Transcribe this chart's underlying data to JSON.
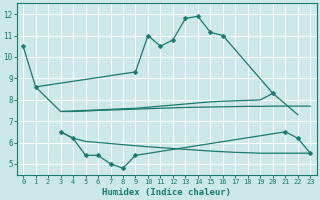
{
  "xlabel": "Humidex (Indice chaleur)",
  "bg_color": "#cce8e8",
  "line_color": "#1a7a6e",
  "grid_color": "#ffffff",
  "xlim": [
    -0.5,
    23.5
  ],
  "ylim": [
    4.5,
    12.5
  ],
  "yticks": [
    5,
    6,
    7,
    8,
    9,
    10,
    11,
    12
  ],
  "xticks": [
    0,
    1,
    2,
    3,
    4,
    5,
    6,
    7,
    8,
    9,
    10,
    11,
    12,
    13,
    14,
    15,
    16,
    17,
    18,
    19,
    20,
    21,
    22,
    23
  ],
  "line1_x": [
    0,
    1,
    9,
    10,
    11,
    12,
    13,
    14,
    15,
    16,
    20
  ],
  "line1_y": [
    10.5,
    8.6,
    9.3,
    11.0,
    10.5,
    10.8,
    11.8,
    11.9,
    11.15,
    11.0,
    8.3
  ],
  "line2_x": [
    1,
    3,
    9,
    10,
    11,
    12,
    13,
    14,
    15,
    16,
    17,
    18,
    19,
    20,
    22
  ],
  "line2_y": [
    8.6,
    7.45,
    7.6,
    7.65,
    7.7,
    7.75,
    7.8,
    7.85,
    7.9,
    7.93,
    7.95,
    7.97,
    7.99,
    8.3,
    7.3
  ],
  "line3_x": [
    3,
    4,
    5,
    6,
    7,
    8,
    9,
    10,
    11,
    12,
    13,
    14,
    15,
    16,
    17,
    18,
    19,
    20,
    21,
    22,
    23
  ],
  "line3_y": [
    7.45,
    7.45,
    7.47,
    7.5,
    7.52,
    7.54,
    7.56,
    7.58,
    7.6,
    7.62,
    7.64,
    7.65,
    7.66,
    7.67,
    7.68,
    7.69,
    7.69,
    7.7,
    7.7,
    7.7,
    7.7
  ],
  "line4_x": [
    3,
    4,
    5,
    6,
    7,
    8,
    9,
    21,
    22,
    23
  ],
  "line4_y": [
    6.5,
    6.2,
    5.4,
    5.4,
    5.0,
    4.8,
    5.4,
    6.5,
    6.2,
    5.5
  ],
  "line5_x": [
    3,
    4,
    5,
    6,
    7,
    8,
    9,
    10,
    11,
    12,
    13,
    14,
    15,
    16,
    17,
    18,
    19,
    20,
    21,
    22,
    23
  ],
  "line5_y": [
    6.5,
    6.2,
    6.05,
    6.0,
    5.95,
    5.9,
    5.85,
    5.8,
    5.76,
    5.72,
    5.68,
    5.64,
    5.6,
    5.57,
    5.54,
    5.52,
    5.5,
    5.5,
    5.5,
    5.5,
    5.5
  ]
}
